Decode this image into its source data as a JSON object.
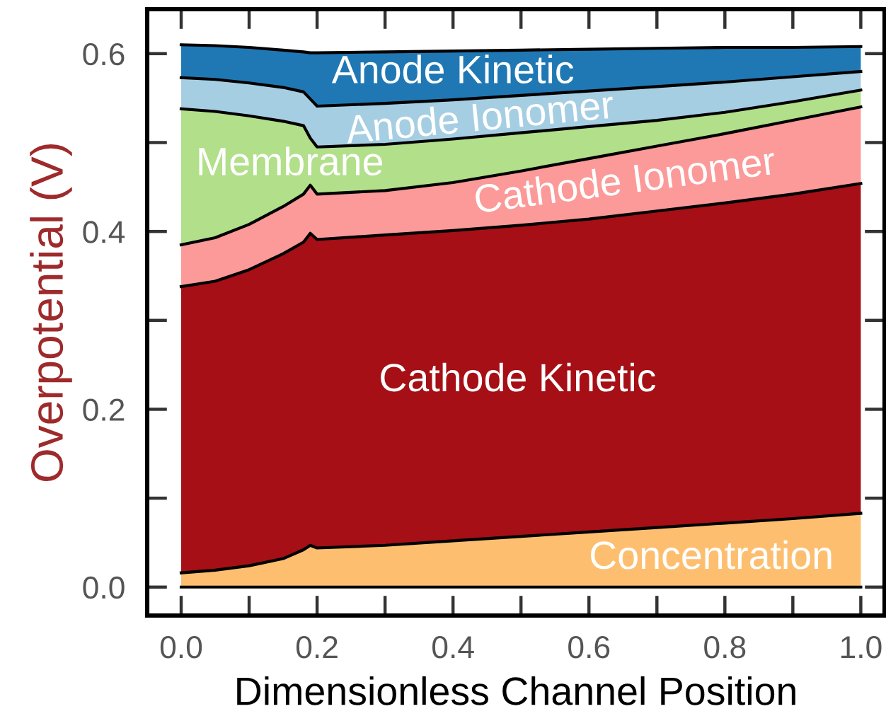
{
  "chart_data": {
    "type": "area",
    "stacked": true,
    "xlabel": "Dimensionless Channel Position",
    "ylabel": "Overpotential (V)",
    "x": [
      0,
      0.05,
      0.1,
      0.15,
      0.18,
      0.19,
      0.2,
      0.3,
      0.4,
      0.5,
      0.6,
      0.7,
      0.8,
      0.9,
      1.0
    ],
    "series": [
      {
        "name": "Concentration",
        "color": "#fdbf6f",
        "values": [
          0.016,
          0.019,
          0.024,
          0.032,
          0.042,
          0.047,
          0.044,
          0.047,
          0.052,
          0.057,
          0.062,
          0.067,
          0.072,
          0.077,
          0.083
        ]
      },
      {
        "name": "Cathode Kinetic",
        "color": "#a50f15",
        "values": [
          0.322,
          0.325,
          0.333,
          0.343,
          0.346,
          0.351,
          0.347,
          0.349,
          0.349,
          0.35,
          0.352,
          0.356,
          0.36,
          0.365,
          0.371
        ]
      },
      {
        "name": "Cathode Ionomer",
        "color": "#fb9a99",
        "values": [
          0.047,
          0.049,
          0.051,
          0.053,
          0.054,
          0.054,
          0.051,
          0.05,
          0.054,
          0.061,
          0.068,
          0.073,
          0.078,
          0.083,
          0.086
        ]
      },
      {
        "name": "Membrane",
        "color": "#b2df8a",
        "values": [
          0.153,
          0.142,
          0.122,
          0.096,
          0.077,
          0.053,
          0.053,
          0.052,
          0.049,
          0.043,
          0.036,
          0.029,
          0.024,
          0.021,
          0.019
        ]
      },
      {
        "name": "Anode Ionomer",
        "color": "#a6cee3",
        "values": [
          0.035,
          0.036,
          0.037,
          0.038,
          0.038,
          0.044,
          0.046,
          0.046,
          0.044,
          0.042,
          0.04,
          0.038,
          0.034,
          0.028,
          0.021
        ]
      },
      {
        "name": "Anode Kinetic",
        "color": "#1f78b4",
        "values": [
          0.037,
          0.038,
          0.04,
          0.042,
          0.045,
          0.052,
          0.06,
          0.058,
          0.055,
          0.051,
          0.047,
          0.043,
          0.039,
          0.033,
          0.028
        ]
      }
    ],
    "xlim": [
      -0.05,
      1.035
    ],
    "ylim": [
      -0.032,
      0.65
    ],
    "xticks": [
      {
        "value": 0,
        "label": "0.0"
      },
      {
        "value": 0.1,
        "label": null
      },
      0.2,
      {
        "value": 0.3,
        "label": null
      },
      0.4,
      {
        "value": 0.5,
        "label": null
      },
      0.6,
      {
        "value": 0.7,
        "label": null
      },
      0.8,
      {
        "value": 0.9,
        "label": null
      },
      {
        "value": 1,
        "label": "1.0"
      }
    ],
    "yticks": [
      {
        "value": 0,
        "label": "0.0"
      },
      {
        "value": 0.1,
        "label": null
      },
      0.2,
      {
        "value": 0.3,
        "label": null
      },
      0.4,
      {
        "value": 0.5,
        "label": null
      },
      0.6
    ]
  }
}
